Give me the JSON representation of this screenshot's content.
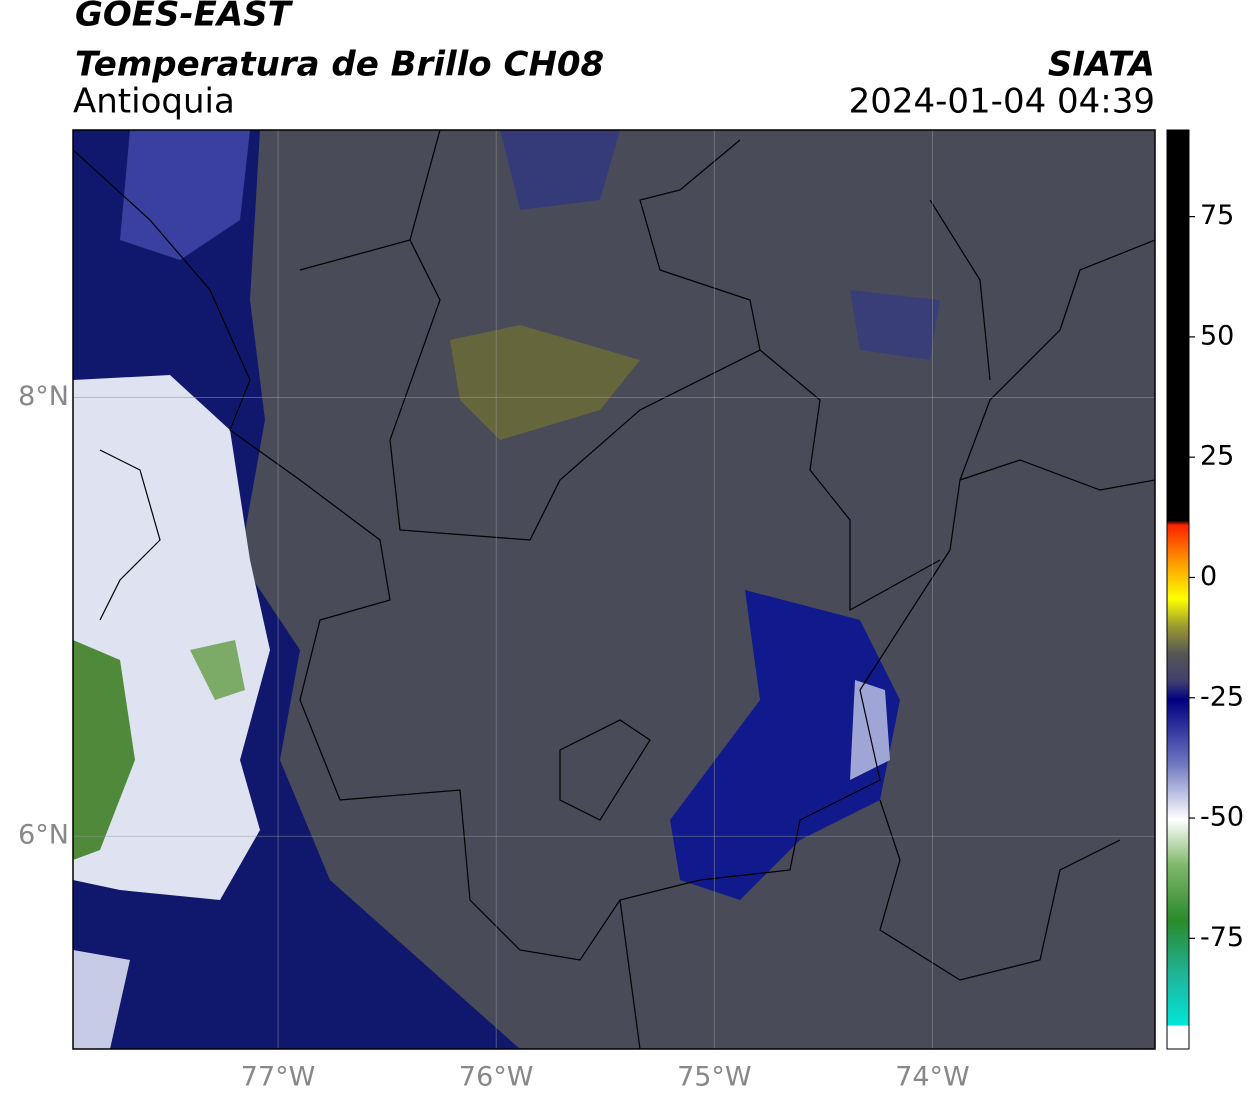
{
  "header": {
    "title": "GOES-EAST",
    "subtitle": "Temperatura de Brillo CH08",
    "region": "Antioquia",
    "source": "SIATA",
    "datetime": "2024-01-04 04:39"
  },
  "map": {
    "xlim": [
      -77.94,
      -72.98
    ],
    "ylim": [
      5.03,
      9.22
    ],
    "xticks": [
      {
        "value": -77,
        "label": "77°W"
      },
      {
        "value": -76,
        "label": "76°W"
      },
      {
        "value": -75,
        "label": "75°W"
      },
      {
        "value": -74,
        "label": "74°W"
      }
    ],
    "yticks": [
      {
        "value": 8,
        "label": "8°N"
      },
      {
        "value": 6,
        "label": "6°N"
      }
    ],
    "grid": true
  },
  "colorbar": {
    "lim": [
      -98,
      93
    ],
    "ticks": [
      75,
      50,
      25,
      0,
      -25,
      -50,
      -75
    ]
  }
}
